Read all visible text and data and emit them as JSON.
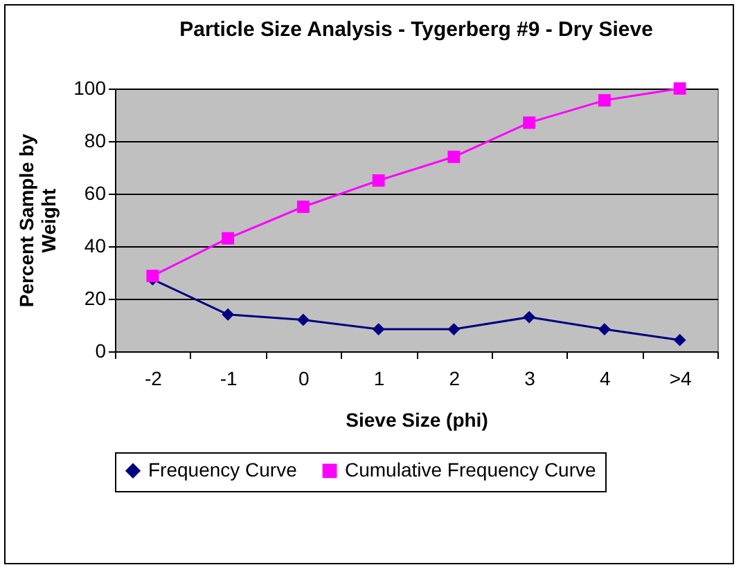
{
  "chart_data": {
    "type": "line",
    "title": "Particle Size Analysis - Tygerberg #9 - Dry Sieve",
    "xlabel": "Sieve Size (phi)",
    "ylabel": "Percent Sample by Weight",
    "categories": [
      "-2",
      "-1",
      "0",
      "1",
      "2",
      "3",
      "4",
      ">4"
    ],
    "series": [
      {
        "name": "Frequency Curve",
        "color": "#000080",
        "marker": "diamond",
        "values": [
          27.4,
          14,
          12,
          8.4,
          8.4,
          13,
          8.4,
          4.3
        ]
      },
      {
        "name": "Cumulative Frequency Curve",
        "color": "#ff00ff",
        "marker": "square",
        "values": [
          28.7,
          43,
          55,
          65,
          74,
          87,
          95.5,
          100
        ]
      }
    ],
    "ylim": [
      0,
      100
    ],
    "yticks": [
      0,
      20,
      40,
      60,
      80,
      100
    ],
    "grid": "y",
    "legend": "bottom"
  }
}
